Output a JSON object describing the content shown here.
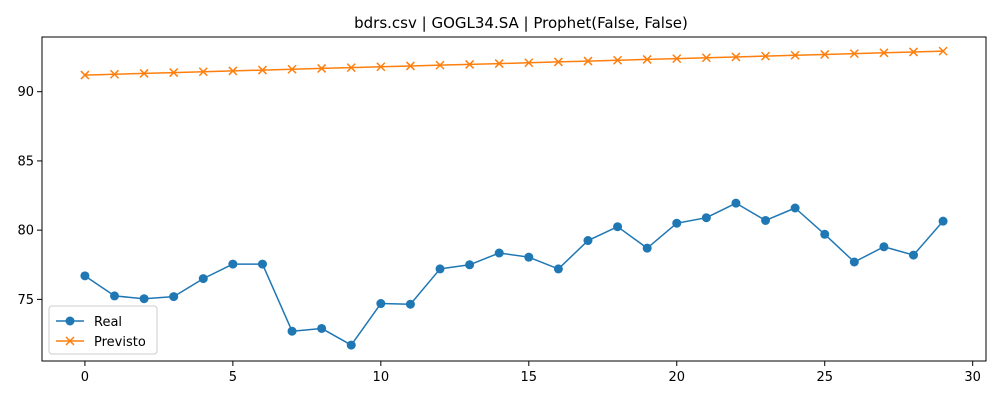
{
  "chart_data": {
    "type": "line",
    "title": "bdrs.csv | GOGL34.SA | Prophet(False, False)",
    "xlabel": "",
    "ylabel": "",
    "xlim": [
      -1.45,
      30.45
    ],
    "ylim": [
      70.55,
      93.95
    ],
    "xticks": [
      0,
      5,
      10,
      15,
      20,
      25,
      30
    ],
    "yticks": [
      75,
      80,
      85,
      90
    ],
    "grid": false,
    "legend_position": "lower-left",
    "x": [
      0,
      1,
      2,
      3,
      4,
      5,
      6,
      7,
      8,
      9,
      10,
      11,
      12,
      13,
      14,
      15,
      16,
      17,
      18,
      19,
      20,
      21,
      22,
      23,
      24,
      25,
      26,
      27,
      28,
      29
    ],
    "series": [
      {
        "name": "Real",
        "color": "#1f77b4",
        "marker": "circle",
        "values": [
          76.7,
          75.25,
          75.05,
          75.2,
          76.5,
          77.55,
          77.55,
          72.7,
          72.9,
          71.7,
          74.7,
          74.65,
          77.2,
          77.5,
          78.35,
          78.05,
          77.2,
          79.25,
          80.25,
          78.7,
          80.5,
          80.9,
          81.95,
          80.7,
          81.6,
          79.7,
          77.7,
          78.8,
          78.2,
          80.65
        ]
      },
      {
        "name": "Previsto",
        "color": "#ff7f0e",
        "marker": "x",
        "values": [
          91.2,
          91.26,
          91.32,
          91.38,
          91.44,
          91.5,
          91.56,
          91.62,
          91.68,
          91.74,
          91.8,
          91.86,
          91.92,
          91.97,
          92.03,
          92.09,
          92.15,
          92.21,
          92.27,
          92.33,
          92.39,
          92.45,
          92.51,
          92.57,
          92.63,
          92.69,
          92.75,
          92.81,
          92.87,
          92.93
        ]
      }
    ]
  }
}
